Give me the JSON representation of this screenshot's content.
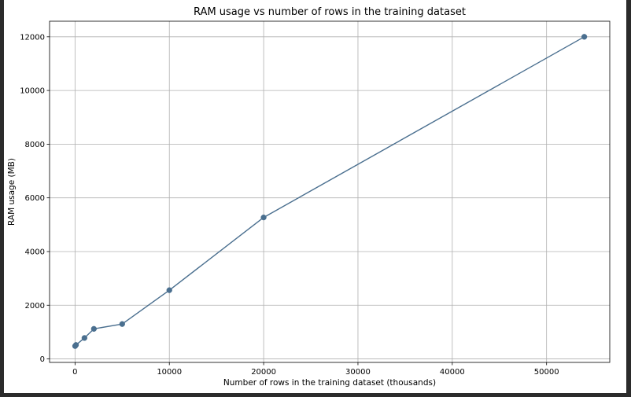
{
  "chart_data": {
    "type": "line",
    "title": "RAM usage vs number of rows in the training dataset",
    "xlabel": "Number of rows in the training dataset (thousands)",
    "ylabel": "RAM usage (MB)",
    "xlim": [
      -2700,
      56700
    ],
    "ylim": [
      -130,
      12580
    ],
    "xticks": [
      0,
      10000,
      20000,
      30000,
      40000,
      50000
    ],
    "yticks": [
      0,
      2000,
      4000,
      6000,
      8000,
      10000,
      12000
    ],
    "grid": true,
    "series": [
      {
        "color": "#4a6f8f",
        "marker": "circle",
        "points": [
          {
            "x": 10,
            "y": 480
          },
          {
            "x": 100,
            "y": 520
          },
          {
            "x": 1000,
            "y": 780
          },
          {
            "x": 2000,
            "y": 1120
          },
          {
            "x": 5000,
            "y": 1300
          },
          {
            "x": 10000,
            "y": 2560
          },
          {
            "x": 20000,
            "y": 5270
          },
          {
            "x": 54000,
            "y": 12000
          }
        ]
      }
    ]
  },
  "colors": {
    "frame_background": "#2b2b2b",
    "figure_background": "#ffffff",
    "grid": "#b0b0b0",
    "axis": "#000000"
  }
}
